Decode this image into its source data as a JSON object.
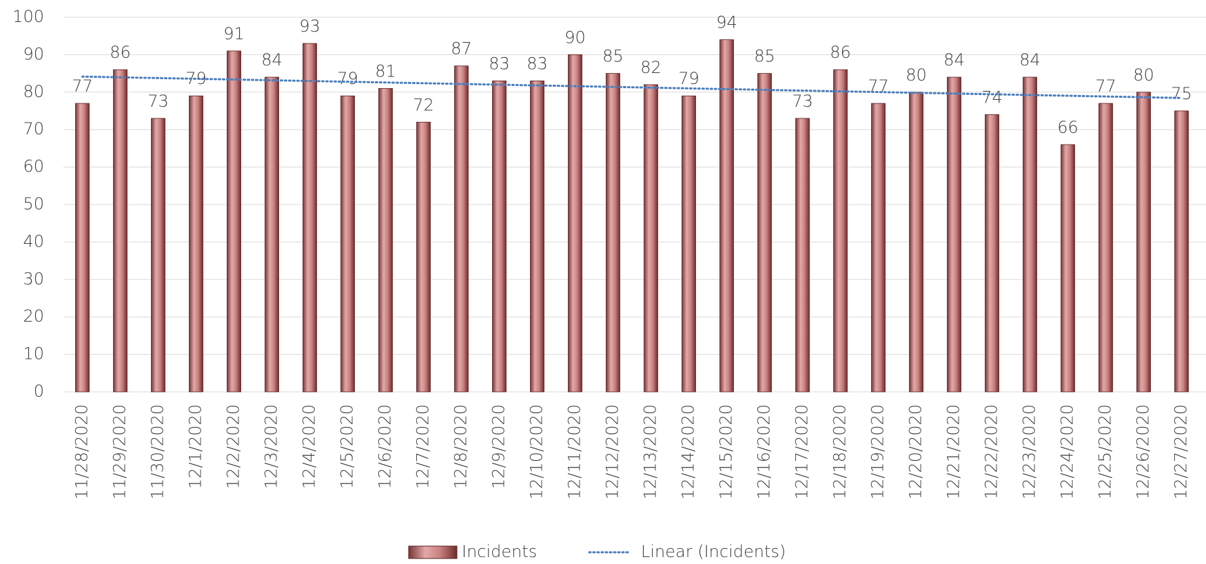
{
  "chart_data": {
    "type": "bar",
    "categories": [
      "11/28/2020",
      "11/29/2020",
      "11/30/2020",
      "12/1/2020",
      "12/2/2020",
      "12/3/2020",
      "12/4/2020",
      "12/5/2020",
      "12/6/2020",
      "12/7/2020",
      "12/8/2020",
      "12/9/2020",
      "12/10/2020",
      "12/11/2020",
      "12/12/2020",
      "12/13/2020",
      "12/14/2020",
      "12/15/2020",
      "12/16/2020",
      "12/17/2020",
      "12/18/2020",
      "12/19/2020",
      "12/20/2020",
      "12/21/2020",
      "12/22/2020",
      "12/23/2020",
      "12/24/2020",
      "12/25/2020",
      "12/26/2020",
      "12/27/2020"
    ],
    "series": [
      {
        "name": "Incidents",
        "color": "#c98080",
        "values": [
          77,
          86,
          73,
          79,
          91,
          84,
          93,
          79,
          81,
          72,
          87,
          83,
          83,
          90,
          85,
          82,
          79,
          94,
          85,
          73,
          86,
          77,
          80,
          84,
          74,
          84,
          66,
          77,
          80,
          75
        ]
      }
    ],
    "trendline": {
      "name": "Linear (Incidents)",
      "color": "#4a7ebb",
      "fit": "linear"
    },
    "ylim": [
      0,
      100
    ],
    "yticks": [
      0,
      10,
      20,
      30,
      40,
      50,
      60,
      70,
      80,
      90,
      100
    ],
    "grid": true,
    "legend": "bottom"
  }
}
